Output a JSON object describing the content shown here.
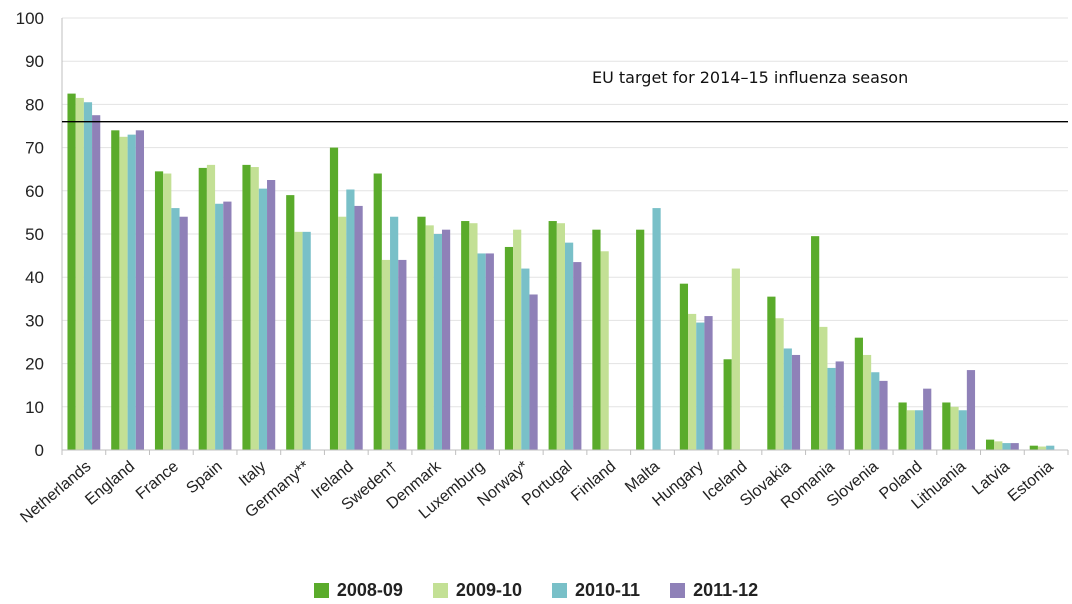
{
  "chart_data": {
    "type": "bar",
    "categories": [
      "Netherlands",
      "England",
      "France",
      "Spain",
      "Italy",
      "Germany**",
      "Ireland",
      "Sweden†",
      "Denmark",
      "Luxemburg",
      "Norway*",
      "Portugal",
      "Finland",
      "Malta",
      "Hungary",
      "Iceland",
      "Slovakia",
      "Romania",
      "Slovenia",
      "Poland",
      "Lithuania",
      "Latvia",
      "Estonia"
    ],
    "series": [
      {
        "name": "2008-09",
        "color": "#5aab2b",
        "values": [
          82.5,
          74,
          64.5,
          65.3,
          66,
          59,
          70,
          64,
          54,
          53,
          47,
          53,
          51,
          51,
          38.5,
          21,
          35.5,
          49.5,
          26,
          11,
          11,
          2.4,
          1
        ]
      },
      {
        "name": "2009-10",
        "color": "#c3e095",
        "values": [
          81.5,
          72.5,
          64,
          66,
          65.5,
          50.5,
          54,
          44,
          52,
          52.5,
          51,
          52.5,
          46,
          null,
          31.5,
          42,
          30.5,
          28.5,
          22,
          9.2,
          10,
          2,
          0.8
        ]
      },
      {
        "name": "2010-11",
        "color": "#79c0c8",
        "values": [
          80.5,
          73,
          56,
          57,
          60.5,
          50.5,
          60.3,
          54,
          50,
          45.5,
          42,
          48,
          null,
          56,
          29.5,
          null,
          23.5,
          19,
          18,
          9.2,
          9.2,
          1.6,
          1
        ]
      },
      {
        "name": "2011-12",
        "color": "#8f81b8",
        "values": [
          77.5,
          74,
          54,
          57.5,
          62.5,
          null,
          56.5,
          44,
          51,
          45.5,
          36,
          43.5,
          null,
          null,
          31,
          null,
          22,
          20.5,
          16,
          14.2,
          18.5,
          1.6,
          null
        ]
      }
    ],
    "ylim": [
      0,
      100
    ],
    "yticks": [
      "0",
      "10",
      "20",
      "30",
      "40",
      "50",
      "60",
      "70",
      "80",
      "90",
      "100"
    ],
    "target_line": {
      "value": 76,
      "label": "EU target for 2014–15 influenza season"
    },
    "grid": true,
    "legend_position": "bottom"
  }
}
